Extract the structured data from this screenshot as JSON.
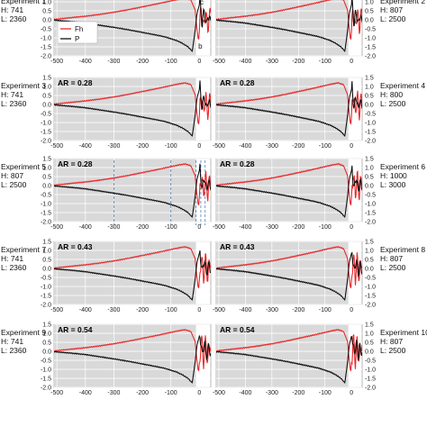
{
  "chart_data": {
    "type": "line",
    "x_ticks": [
      -500,
      -400,
      -300,
      -200,
      -100,
      0
    ],
    "y_ticks": [
      1.5,
      1.0,
      0.5,
      0.0,
      -0.5,
      -1.0,
      -1.5,
      -2.0
    ],
    "xlim": [
      -510,
      40
    ],
    "ylim": [
      -2.0,
      1.5
    ],
    "grid": true,
    "shaded_region_x": [
      -510,
      -12
    ],
    "colors": {
      "Fh": "#e8282b",
      "P": "#111111",
      "shade": "#d9d9d9",
      "grid": "#ffffff",
      "marker": "#5b7fb5"
    },
    "legend": {
      "entries": [
        "Fh",
        "P"
      ],
      "placement": "inside left, top panel row"
    },
    "point_labels": [
      "c",
      "b"
    ],
    "experiments": [
      {
        "name": "Experiment 1",
        "H": "H: 741",
        "L": "L: 2360",
        "AR": "",
        "side": "left",
        "row": 0
      },
      {
        "name": "Experiment 2",
        "H": "H: 807",
        "L": "L: 2500",
        "AR": "",
        "side": "right",
        "row": 0
      },
      {
        "name": "Experiment 3",
        "H": "H: 741",
        "L": "L: 2360",
        "AR": "AR = 0.28",
        "side": "left",
        "row": 1
      },
      {
        "name": "Experiment 4",
        "H": "H: 800",
        "L": "L: 2500",
        "AR": "AR = 0.28",
        "side": "right",
        "row": 1
      },
      {
        "name": "Experiment 5",
        "H": "H: 807",
        "L": "L: 2500",
        "AR": "AR = 0.28",
        "side": "left",
        "row": 2,
        "markers": [
          -300,
          -100,
          -12,
          5,
          20
        ]
      },
      {
        "name": "Experiment 6",
        "H": "H: 1000",
        "L": "L: 3000",
        "AR": "AR = 0.28",
        "side": "right",
        "row": 2
      },
      {
        "name": "Experiment 7",
        "H": "H: 741",
        "L": "L: 2360",
        "AR": "AR = 0.43",
        "side": "left",
        "row": 3
      },
      {
        "name": "Experiment 8",
        "H": "H: 807",
        "L": "L: 2500",
        "AR": "AR = 0.43",
        "side": "right",
        "row": 3
      },
      {
        "name": "Experiment 9",
        "H": "H: 741",
        "L": "L: 2360",
        "AR": "AR = 0.54",
        "side": "left",
        "row": 4
      },
      {
        "name": "Experiment 10",
        "H": "H: 807",
        "L": "L: 2500",
        "AR": "AR = 0.54",
        "side": "right",
        "row": 4
      }
    ],
    "series": [
      {
        "name": "Fh",
        "note_on_values": "approximate shape shared by all panels",
        "points": [
          [
            -510,
            0.02
          ],
          [
            -450,
            0.12
          ],
          [
            -400,
            0.2
          ],
          [
            -350,
            0.3
          ],
          [
            -300,
            0.42
          ],
          [
            -250,
            0.56
          ],
          [
            -200,
            0.72
          ],
          [
            -150,
            0.88
          ],
          [
            -100,
            1.05
          ],
          [
            -70,
            1.15
          ],
          [
            -50,
            1.2
          ],
          [
            -30,
            1.1
          ],
          [
            -15,
            0.55
          ],
          [
            -8,
            -0.6
          ],
          [
            -3,
            -1.2
          ],
          [
            2,
            -0.2
          ],
          [
            6,
            0.75
          ],
          [
            10,
            0.2
          ],
          [
            14,
            -0.65
          ],
          [
            18,
            0.1
          ],
          [
            22,
            0.6
          ],
          [
            26,
            -0.2
          ],
          [
            30,
            -0.55
          ],
          [
            34,
            0.2
          ],
          [
            38,
            0.35
          ]
        ]
      },
      {
        "name": "P",
        "note_on_values": "approximate shape shared by all panels",
        "points": [
          [
            -510,
            -0.02
          ],
          [
            -450,
            -0.1
          ],
          [
            -400,
            -0.18
          ],
          [
            -350,
            -0.3
          ],
          [
            -300,
            -0.42
          ],
          [
            -250,
            -0.55
          ],
          [
            -200,
            -0.7
          ],
          [
            -150,
            -0.85
          ],
          [
            -120,
            -0.95
          ],
          [
            -100,
            -1.05
          ],
          [
            -80,
            -1.15
          ],
          [
            -60,
            -1.3
          ],
          [
            -40,
            -1.5
          ],
          [
            -25,
            -1.75
          ],
          [
            -15,
            -0.6
          ],
          [
            -8,
            0.4
          ],
          [
            -3,
            0.65
          ],
          [
            2,
            1.0
          ],
          [
            6,
            0.35
          ],
          [
            10,
            -0.3
          ],
          [
            14,
            0.25
          ],
          [
            18,
            0.55
          ],
          [
            22,
            -0.1
          ],
          [
            26,
            -0.3
          ],
          [
            30,
            0.3
          ],
          [
            34,
            0.1
          ],
          [
            38,
            -0.05
          ]
        ]
      }
    ]
  }
}
